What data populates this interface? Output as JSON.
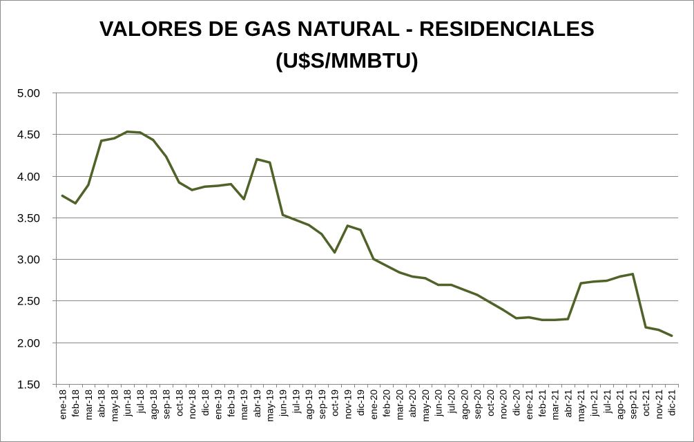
{
  "chart_data": {
    "type": "line",
    "title": "VALORES DE GAS NATURAL - RESIDENCIALES",
    "subtitle": "(U$S/MMBTU)",
    "xlabel": "",
    "ylabel": "",
    "ylim": [
      1.5,
      5.0
    ],
    "yticks": [
      "1.50",
      "2.00",
      "2.50",
      "3.00",
      "3.50",
      "4.00",
      "4.50",
      "5.00"
    ],
    "grid": true,
    "legend": "none",
    "line_color": "#4f6228",
    "categories": [
      "ene-18",
      "feb-18",
      "mar-18",
      "abr-18",
      "may-18",
      "jun-18",
      "jul-18",
      "ago-18",
      "sep-18",
      "oct-18",
      "nov-18",
      "dic-18",
      "ene-19",
      "feb-19",
      "mar-19",
      "abr-19",
      "may-19",
      "jun-19",
      "jul-19",
      "ago-19",
      "sep-19",
      "oct-19",
      "nov-19",
      "dic-19",
      "ene-20",
      "feb-20",
      "mar-20",
      "abr-20",
      "may-20",
      "jun-20",
      "jul-20",
      "ago-20",
      "sep-20",
      "oct-20",
      "nov-20",
      "dic-20",
      "ene-21",
      "feb-21",
      "mar-21",
      "abr-21",
      "may-21",
      "jun-21",
      "jul-21",
      "ago-21",
      "sep-21",
      "oct-21",
      "nov-21",
      "dic-21"
    ],
    "values": [
      3.76,
      3.67,
      3.89,
      4.42,
      4.45,
      4.53,
      4.52,
      4.43,
      4.23,
      3.92,
      3.83,
      3.87,
      3.88,
      3.9,
      3.72,
      4.2,
      4.16,
      3.53,
      3.47,
      3.41,
      3.3,
      3.08,
      3.4,
      3.35,
      3.0,
      2.92,
      2.84,
      2.79,
      2.77,
      2.69,
      2.69,
      2.63,
      2.57,
      2.48,
      2.39,
      2.29,
      2.3,
      2.27,
      2.27,
      2.28,
      2.71,
      2.73,
      2.74,
      2.79,
      2.82,
      2.18,
      2.15,
      2.08
    ]
  }
}
